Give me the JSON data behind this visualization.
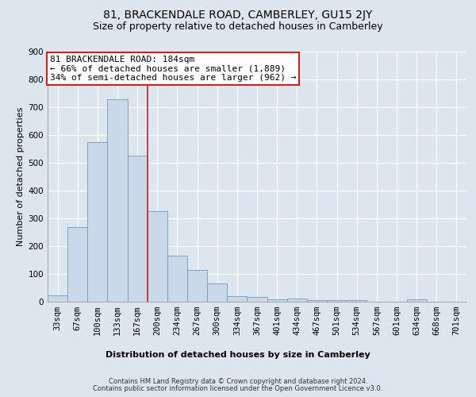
{
  "title": "81, BRACKENDALE ROAD, CAMBERLEY, GU15 2JY",
  "subtitle": "Size of property relative to detached houses in Camberley",
  "xlabel": "Distribution of detached houses by size in Camberley",
  "ylabel": "Number of detached properties",
  "bar_labels": [
    "33sqm",
    "67sqm",
    "100sqm",
    "133sqm",
    "167sqm",
    "200sqm",
    "234sqm",
    "267sqm",
    "300sqm",
    "334sqm",
    "367sqm",
    "401sqm",
    "434sqm",
    "467sqm",
    "501sqm",
    "534sqm",
    "567sqm",
    "601sqm",
    "634sqm",
    "668sqm",
    "701sqm"
  ],
  "bar_values": [
    22,
    270,
    575,
    730,
    525,
    325,
    165,
    115,
    65,
    20,
    18,
    10,
    12,
    7,
    6,
    6,
    0,
    0,
    8,
    0,
    0
  ],
  "bar_color": "#c9d9e9",
  "bar_edge_color": "#7799bb",
  "red_line_color": "#cc2222",
  "annotation_text_line1": "81 BRACKENDALE ROAD: 184sqm",
  "annotation_text_line2": "← 66% of detached houses are smaller (1,889)",
  "annotation_text_line3": "34% of semi-detached houses are larger (962) →",
  "annotation_box_color": "#ffffff",
  "annotation_box_edge": "#cc2222",
  "ylim": [
    0,
    900
  ],
  "yticks": [
    0,
    100,
    200,
    300,
    400,
    500,
    600,
    700,
    800,
    900
  ],
  "background_color": "#dde6ef",
  "plot_bg_color": "#dde6ef",
  "footer_line1": "Contains HM Land Registry data © Crown copyright and database right 2024.",
  "footer_line2": "Contains public sector information licensed under the Open Government Licence v3.0.",
  "title_fontsize": 10,
  "subtitle_fontsize": 9,
  "annotation_fontsize": 8,
  "xlabel_fontsize": 8,
  "ylabel_fontsize": 8,
  "footer_fontsize": 6,
  "tick_fontsize": 7.5
}
